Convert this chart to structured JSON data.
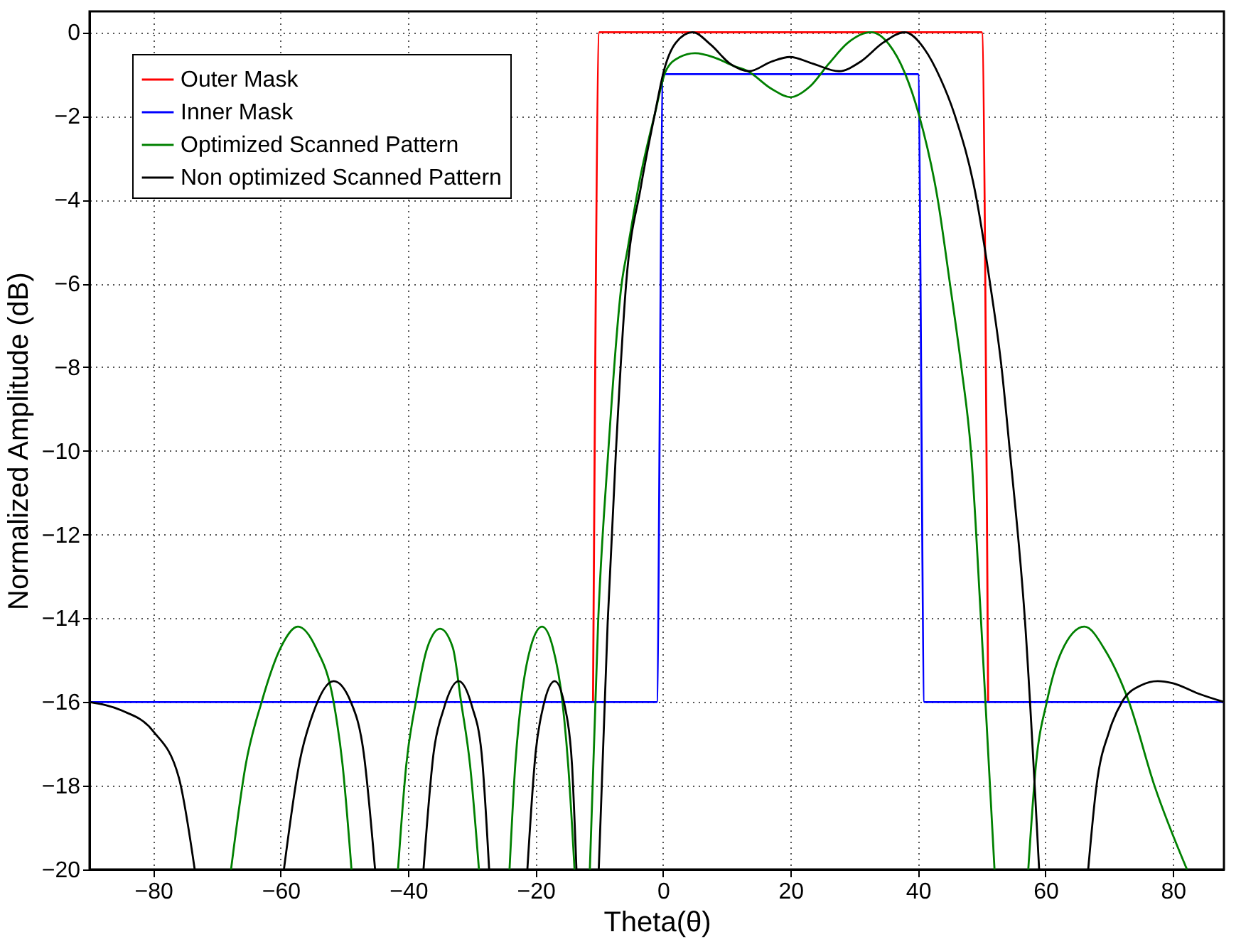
{
  "chart_data": {
    "type": "line",
    "xlabel": "Theta(θ)",
    "ylabel": "Normalized Amplitude (dB)",
    "xlim": [
      -90,
      88
    ],
    "ylim": [
      -20,
      0.5
    ],
    "xticks": [
      -80,
      -60,
      -40,
      -20,
      0,
      20,
      40,
      60,
      80
    ],
    "yticks": [
      -20,
      -18,
      -16,
      -14,
      -12,
      -10,
      -8,
      -6,
      -4,
      -2,
      0
    ],
    "grid": true,
    "legend": "top left",
    "marker": "none",
    "line_style": "solid",
    "series": [
      {
        "name": "Outer Mask",
        "color": "#ff0000",
        "x": [
          -11,
          -10,
          50,
          51
        ],
        "values": [
          -16,
          0,
          0,
          -16
        ]
      },
      {
        "name": "Inner Mask",
        "color": "#0000ff",
        "x": [
          -90,
          -1,
          0,
          40,
          41,
          88
        ],
        "values": [
          -16,
          -16,
          -1,
          -1,
          -16,
          -16
        ]
      },
      {
        "name": "Optimized Scanned Pattern",
        "color": "#008000",
        "x": [
          -67.8,
          -65.5,
          -63,
          -60,
          -57.3,
          -54.5,
          -51.7,
          -50.3,
          -48.9,
          -45,
          -41.6,
          -40.3,
          -38.8,
          -37,
          -35,
          -33,
          -31.7,
          -30.3,
          -28.9,
          -26.5,
          -24.1,
          -23.2,
          -22.3,
          -20.8,
          -19,
          -17.3,
          -15.8,
          -14.9,
          -13.9,
          -12.7,
          -11.5,
          -10.2,
          -8.6,
          -6.5,
          -5.6,
          -3.5,
          -1.3,
          0.4,
          2.5,
          5,
          8,
          11,
          13.3,
          17,
          20,
          23,
          26,
          29,
          32.6,
          35.5,
          38,
          40.1,
          43.1,
          45,
          46.8,
          48.3,
          49.9,
          52,
          55,
          57.3,
          58.5,
          60.2,
          62.5,
          66.1,
          69.5,
          73.1,
          77.1,
          82.2
        ],
        "values": [
          -20,
          -17.5,
          -16,
          -14.7,
          -14.2,
          -14.7,
          -16,
          -17.5,
          -20,
          null,
          -20,
          -17.5,
          -16,
          -14.7,
          -14.25,
          -14.7,
          -16,
          -17.5,
          -20,
          null,
          -20,
          -17.5,
          -16,
          -14.7,
          -14.2,
          -14.7,
          -16,
          -17.5,
          -20,
          null,
          -20,
          -14.1,
          -10,
          -6,
          -5.2,
          -3.4,
          -1.95,
          -0.93,
          -0.6,
          -0.5,
          -0.6,
          -0.8,
          -0.93,
          -1.35,
          -1.55,
          -1.3,
          -0.75,
          -0.25,
          0,
          -0.3,
          -1,
          -1.95,
          -4,
          -6,
          -8,
          -10,
          -14.1,
          -20,
          null,
          -20,
          -17.5,
          -16,
          -14.8,
          -14.2,
          -14.8,
          -16,
          -18,
          -20
        ]
      },
      {
        "name": "Non optimized Scanned Pattern",
        "color": "#000000",
        "x": [
          -90,
          -85,
          -80,
          -76,
          -73.5,
          -66,
          -59.5,
          -57,
          -55,
          -51.7,
          -49,
          -47,
          -45.2,
          -41,
          -37.6,
          -36,
          -34.5,
          -32.1,
          -30,
          -28.5,
          -27.3,
          -24,
          -21.3,
          -20,
          -18.8,
          -17,
          -15.3,
          -14.3,
          -13.6,
          -12,
          -10.1,
          -8.7,
          -7.4,
          -5.8,
          -3.5,
          -1.3,
          0.1,
          2,
          4.6,
          7.5,
          10.5,
          13.5,
          17,
          19.9,
          23.5,
          27.6,
          31,
          34.5,
          37.9,
          41,
          43.5,
          45.7,
          49.2,
          51.3,
          53.1,
          54.4,
          56.8,
          59,
          63,
          66.7,
          68,
          70,
          72,
          75,
          77.6,
          80,
          84,
          88
        ],
        "values": [
          -16,
          -16.2,
          -16.7,
          -17.8,
          -20,
          null,
          -20,
          -17.4,
          -16.3,
          -15.5,
          -16,
          -17.2,
          -20,
          null,
          -20,
          -17.2,
          -16.2,
          -15.5,
          -16.1,
          -17.2,
          -20,
          null,
          -20,
          -17.2,
          -16.1,
          -15.5,
          -16.2,
          -17.5,
          -20,
          null,
          -20,
          -14.1,
          -10,
          -6,
          -3.7,
          -1.95,
          -0.93,
          -0.25,
          0,
          -0.3,
          -0.75,
          -0.93,
          -0.7,
          -0.59,
          -0.75,
          -0.93,
          -0.7,
          -0.25,
          0,
          -0.4,
          -1.1,
          -1.95,
          -4,
          -6,
          -8,
          -10,
          -14.1,
          -20,
          null,
          -20,
          -18,
          -16.7,
          -16,
          -15.6,
          -15.5,
          -15.55,
          -15.8,
          -16
        ]
      }
    ]
  }
}
